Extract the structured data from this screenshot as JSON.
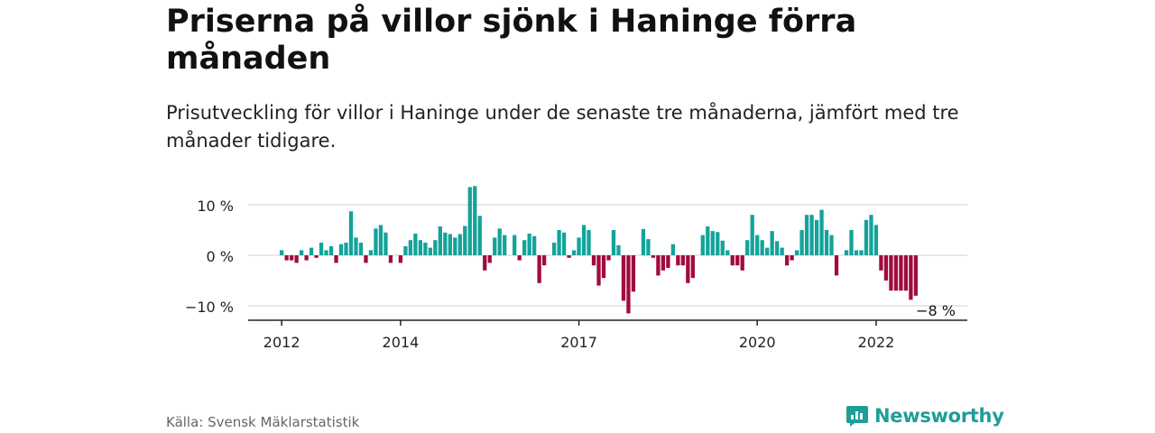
{
  "header": {
    "title": "Priserna på villor sjönk i Haninge förra månaden",
    "subtitle": "Prisutveckling för villor i Haninge under de senaste tre månaderna, jämfört med tre månader tidigare."
  },
  "footer": {
    "source": "Källa: Svensk Mäklarstatistik",
    "brand": "Newsworthy"
  },
  "colors": {
    "positive": "#13a39a",
    "negative": "#a10b3e",
    "brand": "#1e9e97"
  },
  "icons": {
    "brand_logo": "newsworthy-logo-icon"
  },
  "chart_data": {
    "type": "bar",
    "x_start": "2012-01",
    "x_end": "2023-01",
    "x_ticks": [
      "2012",
      "2014",
      "2017",
      "2020",
      "2022"
    ],
    "y_ticks": [
      "10 %",
      "0 %",
      "−10 %"
    ],
    "y_tick_values": [
      10,
      0,
      -10
    ],
    "ylim": [
      -12,
      14
    ],
    "grid": true,
    "last_value_label": "−8 %",
    "values": [
      1,
      -1,
      -1,
      -1.5,
      1,
      -1,
      1.5,
      -0.5,
      2.5,
      1,
      1.8,
      -1.5,
      2.2,
      2.5,
      8.7,
      3.5,
      2.5,
      -1.5,
      1,
      5.3,
      6,
      4.5,
      -1.5,
      0,
      -1.5,
      1.8,
      3,
      4.3,
      3,
      2.5,
      1.5,
      3,
      5.7,
      4.5,
      4.2,
      3.5,
      4.2,
      5.8,
      13.5,
      13.7,
      7.8,
      -3,
      -1.5,
      3.5,
      5.3,
      4,
      0,
      4,
      -1,
      3,
      4.3,
      3.8,
      -5.5,
      -2,
      0,
      2.5,
      5,
      4.5,
      -0.5,
      1,
      3.5,
      6,
      5,
      -2,
      -6,
      -4.5,
      -1,
      5,
      2,
      -9,
      -11.5,
      -7.2,
      0,
      5.2,
      3.2,
      -0.5,
      -4,
      -3,
      -2.5,
      2.2,
      -2,
      -2,
      -5.5,
      -4.5,
      0,
      4,
      5.7,
      4.8,
      4.6,
      2.9,
      1,
      -2,
      -2,
      -3,
      3,
      8,
      4,
      3,
      1.5,
      4.8,
      2.8,
      1.5,
      -2,
      -1,
      1,
      5,
      8,
      8,
      7,
      9,
      5,
      4,
      -4,
      0,
      1,
      5,
      1,
      1,
      7,
      8,
      6,
      -3,
      -5,
      -7,
      -7,
      -7,
      -7,
      -8.8,
      -8
    ]
  }
}
